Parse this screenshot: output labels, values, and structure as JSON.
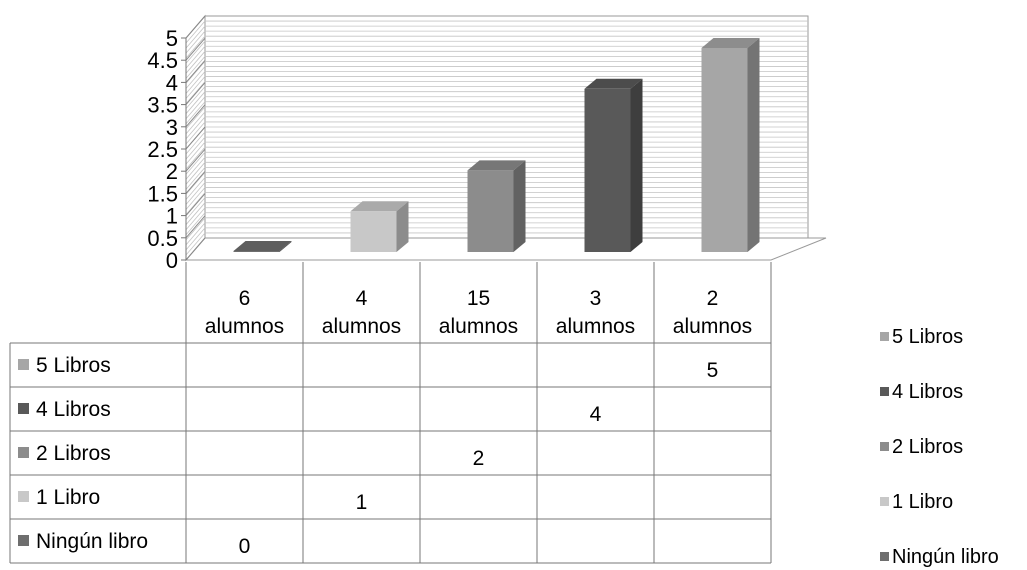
{
  "chart_data": {
    "type": "bar",
    "categories": [
      [
        "6",
        "alumnos"
      ],
      [
        "4",
        "alumnos"
      ],
      [
        "15",
        "alumnos"
      ],
      [
        "3",
        "alumnos"
      ],
      [
        "2",
        "alumnos"
      ]
    ],
    "series": [
      {
        "name": "5 Libros",
        "color": "#a6a6a6",
        "values": [
          null,
          null,
          null,
          null,
          5
        ]
      },
      {
        "name": "4 Libros",
        "color": "#595959",
        "values": [
          null,
          null,
          null,
          4,
          null
        ]
      },
      {
        "name": "2 Libros",
        "color": "#8c8c8c",
        "values": [
          null,
          null,
          2,
          null,
          null
        ]
      },
      {
        "name": "1 Libro",
        "color": "#c8c8c8",
        "values": [
          null,
          1,
          null,
          null,
          null
        ]
      },
      {
        "name": "Ningún libro",
        "color": "#6e6e6e",
        "values": [
          0,
          null,
          null,
          null,
          null
        ]
      }
    ],
    "yticks": [
      "0",
      "0.5",
      "1",
      "1.5",
      "2",
      "2.5",
      "3",
      "3.5",
      "4",
      "4.5",
      "5"
    ],
    "ylim": [
      0,
      5
    ],
    "grid": true,
    "legend": "right",
    "data_table": true,
    "title": "",
    "xlabel": "",
    "ylabel": ""
  }
}
